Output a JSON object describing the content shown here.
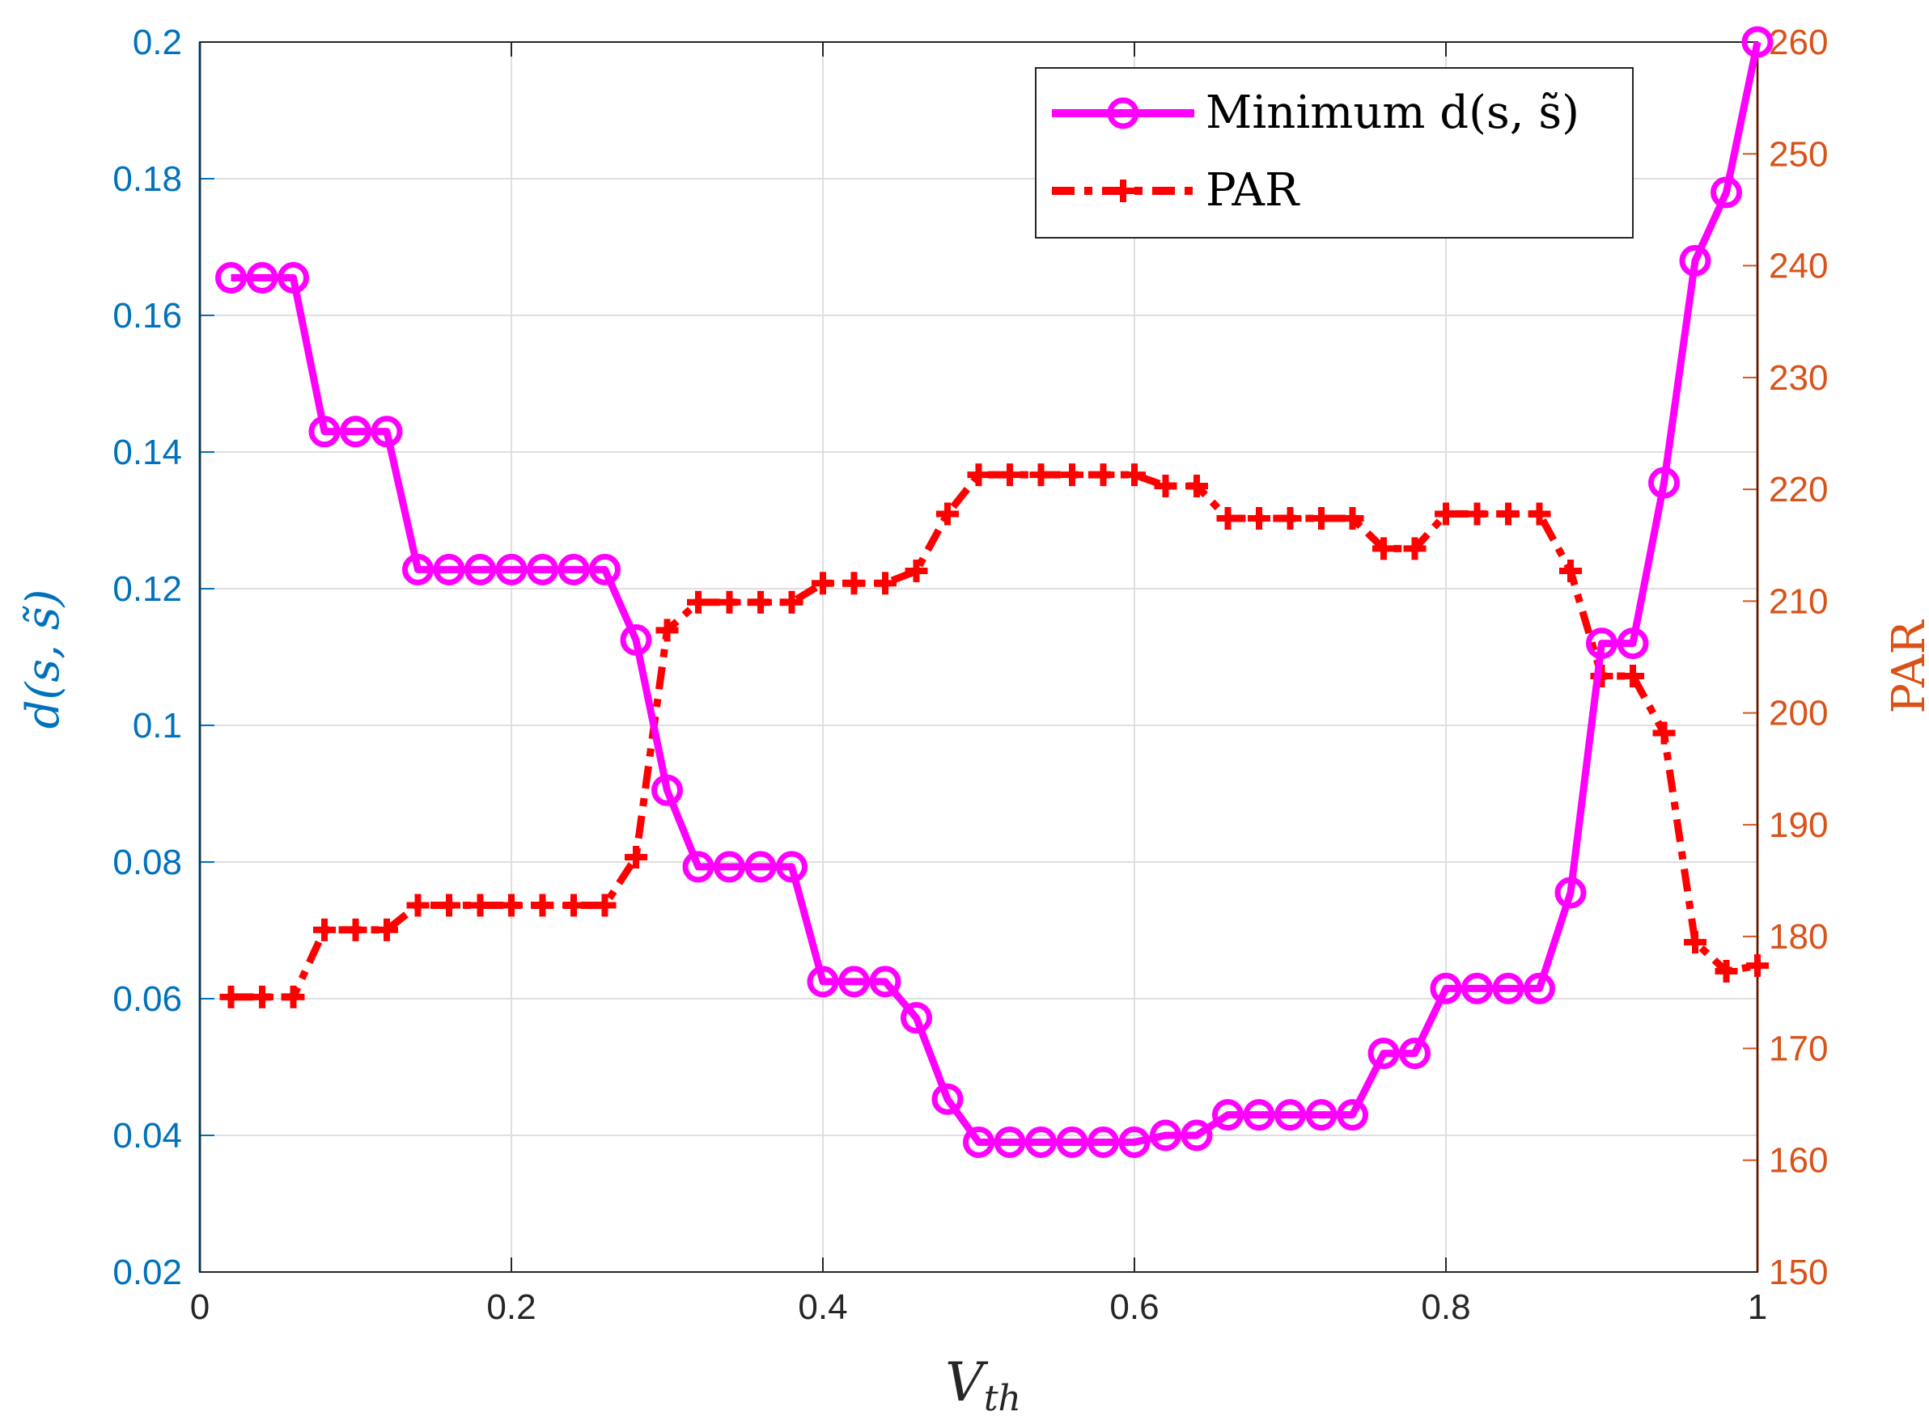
{
  "chart_data": {
    "type": "line",
    "xlabel_main": "V",
    "xlabel_sub": "th",
    "ylabel_left": "d(s, s̃)",
    "ylabel_right": "PAR",
    "xlim": [
      0,
      1
    ],
    "ylim_left": [
      0.02,
      0.2
    ],
    "ylim_right": [
      150,
      260
    ],
    "x_ticks": [
      "0",
      "0.2",
      "0.4",
      "0.6",
      "0.8",
      "1"
    ],
    "x_tick_values": [
      0,
      0.2,
      0.4,
      0.6,
      0.8,
      1
    ],
    "left_ticks": [
      "0.02",
      "0.04",
      "0.06",
      "0.08",
      "0.1",
      "0.12",
      "0.14",
      "0.16",
      "0.18",
      "0.2"
    ],
    "left_tick_values": [
      0.02,
      0.04,
      0.06,
      0.08,
      0.1,
      0.12,
      0.14,
      0.16,
      0.18,
      0.2
    ],
    "right_ticks": [
      "150",
      "160",
      "170",
      "180",
      "190",
      "200",
      "210",
      "220",
      "230",
      "240",
      "250",
      "260"
    ],
    "right_tick_values": [
      150,
      160,
      170,
      180,
      190,
      200,
      210,
      220,
      230,
      240,
      250,
      260
    ],
    "grid": true,
    "legend_position": "top-right",
    "colors": {
      "left_axis": "#0072BD",
      "right_axis": "#D95319",
      "series_min_d": "#FF00FF",
      "series_par": "#FF0000",
      "grid": "#DFDFDF"
    },
    "x": [
      0.02,
      0.04,
      0.06,
      0.08,
      0.1,
      0.12,
      0.14,
      0.16,
      0.18,
      0.2,
      0.22,
      0.24,
      0.26,
      0.28,
      0.3,
      0.32,
      0.34,
      0.36,
      0.38,
      0.4,
      0.42,
      0.44,
      0.46,
      0.48,
      0.5,
      0.52,
      0.54,
      0.56,
      0.58,
      0.6,
      0.62,
      0.64,
      0.66,
      0.68,
      0.7,
      0.72,
      0.74,
      0.76,
      0.78,
      0.8,
      0.82,
      0.84,
      0.86,
      0.88,
      0.9,
      0.92,
      0.94,
      0.96,
      0.98,
      1.0
    ],
    "series": [
      {
        "name": "Minimum d(s, s̃)",
        "legend_label": "Minimum d(s, s̃)",
        "axis": "left",
        "values": [
          0.1655,
          0.1655,
          0.1655,
          0.143,
          0.143,
          0.143,
          0.1228,
          0.1228,
          0.1228,
          0.1228,
          0.1228,
          0.1228,
          0.1228,
          0.1125,
          0.0905,
          0.0793,
          0.0793,
          0.0793,
          0.0793,
          0.0625,
          0.0625,
          0.0625,
          0.0572,
          0.0453,
          0.039,
          0.039,
          0.039,
          0.039,
          0.039,
          0.039,
          0.04,
          0.04,
          0.043,
          0.043,
          0.043,
          0.043,
          0.043,
          0.052,
          0.052,
          0.0615,
          0.0615,
          0.0615,
          0.0615,
          0.0755,
          0.112,
          0.112,
          0.1355,
          0.168,
          0.178,
          0.2
        ]
      },
      {
        "name": "PAR",
        "legend_label": "PAR",
        "axis": "right",
        "values": [
          174.6,
          174.6,
          174.6,
          180.6,
          180.6,
          180.6,
          182.8,
          182.8,
          182.8,
          182.8,
          182.8,
          182.8,
          182.8,
          187.1,
          207.4,
          209.9,
          209.9,
          209.9,
          209.9,
          211.6,
          211.6,
          211.6,
          212.7,
          217.8,
          221.3,
          221.3,
          221.3,
          221.3,
          221.3,
          221.3,
          220.3,
          220.3,
          217.4,
          217.4,
          217.4,
          217.4,
          217.4,
          214.7,
          214.7,
          217.8,
          217.8,
          217.8,
          217.8,
          212.7,
          203.3,
          203.3,
          198.2,
          179.5,
          176.9,
          177.4
        ]
      }
    ]
  }
}
